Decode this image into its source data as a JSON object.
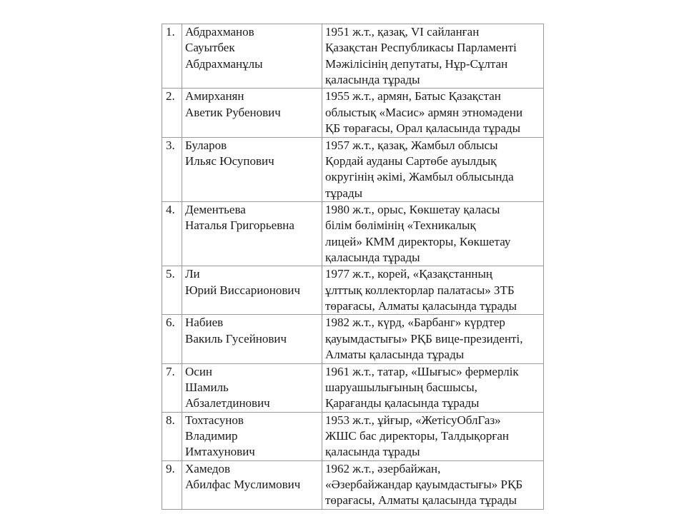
{
  "table": {
    "rows": [
      {
        "num": "1.",
        "name": [
          "Абдрахманов",
          "Сауытбек",
          "Абдрахманұлы"
        ],
        "desc": [
          "1951 ж.т., қазақ,  VI сайланған",
          "Қазақстан Республикасы Парламенті",
          "Мәжілісінің депутаты,  Нұр-Сұлтан",
          "қаласында тұрады"
        ]
      },
      {
        "num": "2.",
        "name": [
          "Амирханян",
          "Аветик Рубенович"
        ],
        "desc": [
          "1955 ж.т., армян, Батыс Қазақстан",
          "облыстық «Масис» армян этномәдени",
          "ҚБ төрағасы, Орал қаласында тұрады"
        ]
      },
      {
        "num": "3.",
        "name": [
          "Буларов",
          "Ильяс Юсупович"
        ],
        "desc": [
          "1957 ж.т., қазақ, Жамбыл облысы",
          "Қордай ауданы Сартөбе ауылдық",
          "округінің әкімі, Жамбыл облысында",
          "тұрады"
        ]
      },
      {
        "num": "4.",
        "name": [
          "Дементьева",
          "Наталья Григорьевна"
        ],
        "desc": [
          "1980 ж.т., орыс,  Көкшетау қаласы",
          "білім бөлімінің «Техникалық",
          "лицей» КММ директоры, Көкшетау",
          "қаласында тұрады"
        ]
      },
      {
        "num": "5.",
        "name": [
          "Ли",
          "Юрий Виссарионович"
        ],
        "desc": [
          "1977 ж.т.,  корей,  «Қазақстанның",
          "ұлттық коллекторлар палатасы» ЗТБ",
          "төрағасы, Алматы қаласында тұрады"
        ]
      },
      {
        "num": "6.",
        "name": [
          "Набиев",
          "Вакиль Гусейнович"
        ],
        "desc": [
          "1982 ж.т., күрд, «Барбанг» күрдтер",
          "қауымдастығы» РҚБ вице-президенті,",
          "Алматы қаласында тұрады"
        ]
      },
      {
        "num": "7.",
        "name": [
          "Осин",
          "Шамиль",
          "Абзалетдинович"
        ],
        "desc": [
          "1961 ж.т., татар, «Шығыс» фермерлік",
          "шаруашылығының басшысы,",
          "Қарағанды қаласында тұрады"
        ]
      },
      {
        "num": "8.",
        "name": [
          "Тохтасунов",
          "Владимир",
          "Имтахунович"
        ],
        "desc": [
          "1953 ж.т., ұйғыр, «ЖетісуОблГаз»",
          "ЖШС бас директоры, Талдықорған",
          "қаласында тұрады"
        ]
      },
      {
        "num": "9.",
        "name": [
          "Хамедов",
          "Абилфас Муслимович"
        ],
        "desc": [
          "1962 ж.т., әзербайжан,",
          "«Әзербайжандар қауымдастығы» РҚБ",
          "төрағасы,  Алматы қаласында тұрады"
        ]
      }
    ]
  }
}
